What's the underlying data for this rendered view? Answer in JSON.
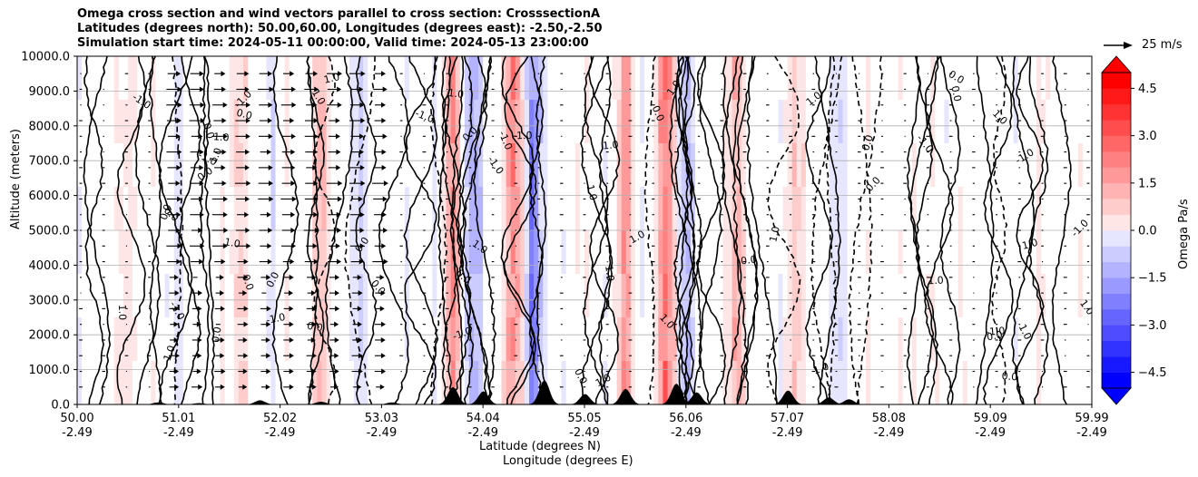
{
  "title_lines": [
    "Omega cross section and wind vectors parallel to cross section: CrosssectionA",
    "Latitudes (degrees north): 50.00,60.00, Longitudes (degrees east): -2.50,-2.50",
    "Simulation start time: 2024-05-11 00:00:00, Valid time: 2024-05-13 23:00:00"
  ],
  "chart_data": {
    "type": "heatmap",
    "subtype": "cross-section contour with wind vectors",
    "ylabel": "Altitude (meters)",
    "xlabel_line1": "Latitude (degrees N)",
    "xlabel_line2": "Longitude (degrees E)",
    "ylim": [
      0,
      10000
    ],
    "y_ticks": [
      "0.0",
      "1000.0",
      "2000.0",
      "3000.0",
      "4000.0",
      "5000.0",
      "6000.0",
      "7000.0",
      "8000.0",
      "9000.0",
      "10000.0"
    ],
    "y_tick_values": [
      0,
      1000,
      2000,
      3000,
      4000,
      5000,
      6000,
      7000,
      8000,
      9000,
      10000
    ],
    "x_ticks": [
      {
        "lat": "50.00",
        "lon": "-2.49"
      },
      {
        "lat": "51.01",
        "lon": "-2.49"
      },
      {
        "lat": "52.02",
        "lon": "-2.49"
      },
      {
        "lat": "53.03",
        "lon": "-2.49"
      },
      {
        "lat": "54.04",
        "lon": "-2.49"
      },
      {
        "lat": "55.05",
        "lon": "-2.49"
      },
      {
        "lat": "56.06",
        "lon": "-2.49"
      },
      {
        "lat": "57.07",
        "lon": "-2.49"
      },
      {
        "lat": "58.08",
        "lon": "-2.49"
      },
      {
        "lat": "59.09",
        "lon": "-2.49"
      },
      {
        "lat": "59.99",
        "lon": "-2.49"
      }
    ],
    "xlim_lat": [
      50.0,
      59.99
    ],
    "grid": "horizontal",
    "colorbar": {
      "label": "Omega Pa/s",
      "range": [
        -5.0,
        5.0
      ],
      "ticks": [
        "4.5",
        "3.0",
        "1.5",
        "0.0",
        "−1.5",
        "−3.0",
        "−4.5"
      ],
      "tick_values": [
        4.5,
        3.0,
        1.5,
        0.0,
        -1.5,
        -3.0,
        -4.5
      ],
      "levels": 20,
      "colormap": "bwr",
      "extend": "both"
    },
    "vector_key": {
      "label": "25 m/s",
      "speed": 25
    },
    "contour_labels": [
      "0.0",
      "1.0",
      "-1.0"
    ],
    "omega_bands": [
      {
        "lat": 50.5,
        "omega": 0.3
      },
      {
        "lat": 51.0,
        "omega": -0.4
      },
      {
        "lat": 51.6,
        "omega": 0.8
      },
      {
        "lat": 51.9,
        "omega": -0.5
      },
      {
        "lat": 52.4,
        "omega": 1.2
      },
      {
        "lat": 52.8,
        "omega": -0.8
      },
      {
        "lat": 53.7,
        "omega": 2.0
      },
      {
        "lat": 53.9,
        "omega": -2.0
      },
      {
        "lat": 54.3,
        "omega": 2.5
      },
      {
        "lat": 54.5,
        "omega": -2.5
      },
      {
        "lat": 55.4,
        "omega": 2.0
      },
      {
        "lat": 55.8,
        "omega": 3.0
      },
      {
        "lat": 56.0,
        "omega": -1.5
      },
      {
        "lat": 56.5,
        "omega": 1.5
      },
      {
        "lat": 57.1,
        "omega": 1.0
      },
      {
        "lat": 57.5,
        "omega": -0.8
      },
      {
        "lat": 59.5,
        "omega": 0.5
      }
    ]
  },
  "colors": {
    "positive_max": "#ff0000",
    "negative_max": "#0000ff",
    "neutral": "#ffffff",
    "terrain": "#000000",
    "contour": "#000000"
  }
}
